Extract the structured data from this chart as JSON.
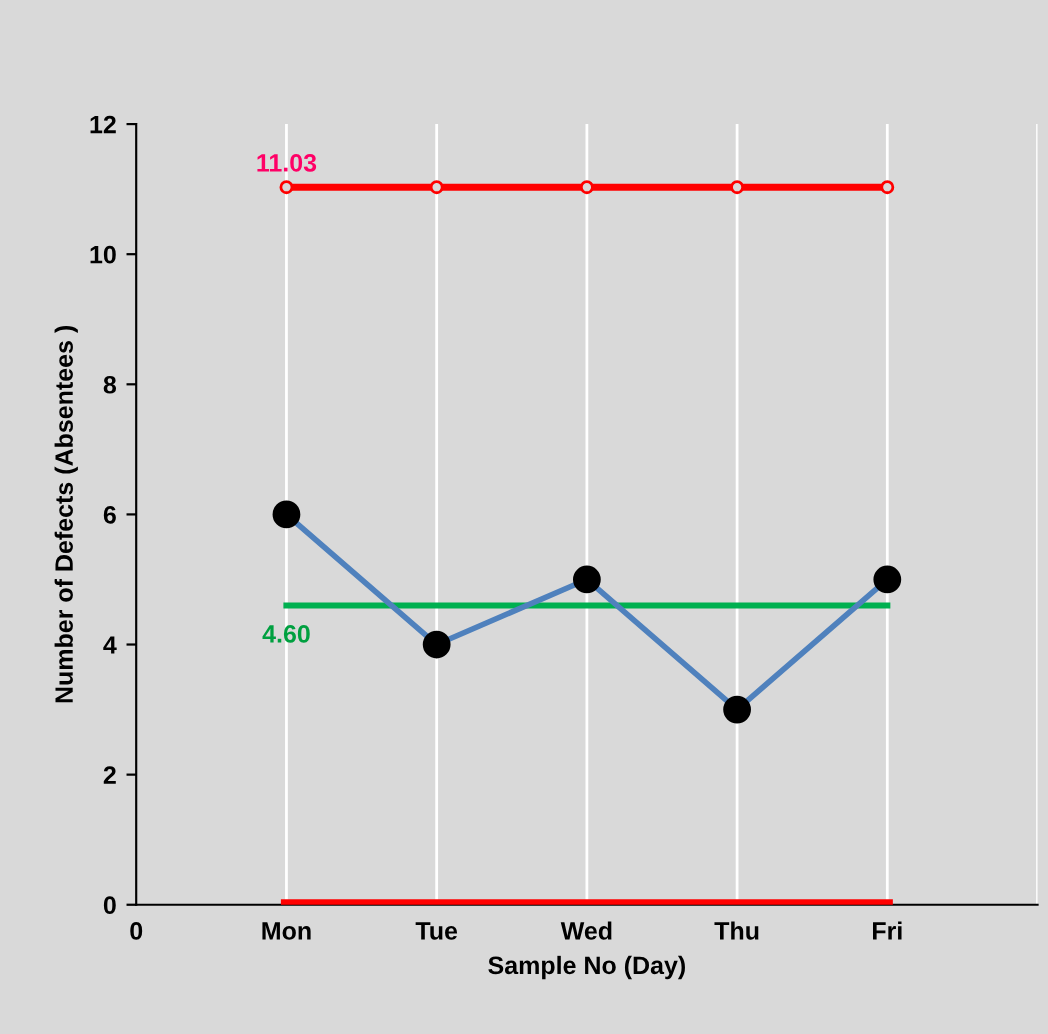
{
  "chart_data": {
    "type": "line",
    "xlabel": "Sample No (Day)",
    "ylabel": "Number of Defects (Absentees )",
    "categories": [
      "0",
      "Mon",
      "Tue",
      "Wed",
      "Thu",
      "Fri",
      null
    ],
    "series": [
      {
        "color": "#4f81bd",
        "values": [
          null,
          6,
          4,
          5,
          3,
          5,
          null
        ],
        "marker": "circle"
      },
      {
        "color": "#ff0000",
        "values": [
          null,
          11.03,
          11.03,
          11.03,
          11.03,
          11.03,
          null
        ],
        "marker": "circle"
      },
      {
        "color": "#00b050",
        "values": [
          null,
          4.6,
          4.6,
          4.6,
          4.6,
          4.6,
          null
        ],
        "marker": "none"
      },
      {
        "color": "#ff0000",
        "values": [
          null,
          0,
          0,
          0,
          0,
          0,
          null
        ],
        "marker": "none"
      }
    ],
    "annotations": [
      {
        "text": "11.03",
        "x": "Mon",
        "y": 11.03
      },
      {
        "text": "4.60",
        "x": "Mon",
        "y": 4.6
      }
    ],
    "ylim": [
      0,
      12
    ],
    "yticks": [
      0,
      2,
      4,
      6,
      8,
      10,
      12
    ],
    "grid": "x",
    "legend": false
  }
}
